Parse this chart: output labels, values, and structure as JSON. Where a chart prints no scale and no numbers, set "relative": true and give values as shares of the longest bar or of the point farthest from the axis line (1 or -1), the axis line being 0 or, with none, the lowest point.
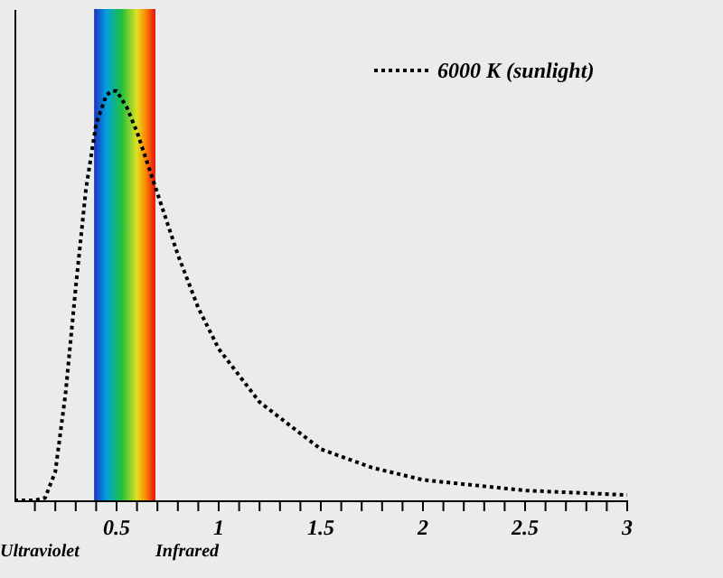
{
  "chart_data": {
    "type": "line",
    "relative": true,
    "x": [
      0.0,
      0.1,
      0.15,
      0.2,
      0.25,
      0.3,
      0.35,
      0.4,
      0.45,
      0.48,
      0.5,
      0.55,
      0.6,
      0.7,
      0.8,
      0.9,
      1.0,
      1.2,
      1.5,
      1.75,
      2.0,
      2.5,
      3.0
    ],
    "series": [
      {
        "name": "6000 K (sunlight)",
        "color": "#000000",
        "values": [
          0,
          0,
          0.006,
          0.07,
          0.26,
          0.52,
          0.76,
          0.92,
          0.99,
          1.0,
          1.0,
          0.96,
          0.9,
          0.75,
          0.6,
          0.47,
          0.37,
          0.24,
          0.125,
          0.08,
          0.05,
          0.024,
          0.013
        ]
      }
    ],
    "xlim": [
      0,
      3
    ],
    "xticks": [
      {
        "value": 0.1,
        "label": null
      },
      {
        "value": 0.2,
        "label": null
      },
      {
        "value": 0.3,
        "label": null
      },
      {
        "value": 0.4,
        "label": null
      },
      0.5,
      {
        "value": 0.6,
        "label": null
      },
      {
        "value": 0.7,
        "label": null
      },
      {
        "value": 0.8,
        "label": null
      },
      {
        "value": 0.9,
        "label": null
      },
      1,
      {
        "value": 1.1,
        "label": null
      },
      {
        "value": 1.2,
        "label": null
      },
      {
        "value": 1.3,
        "label": null
      },
      {
        "value": 1.4,
        "label": null
      },
      1.5,
      {
        "value": 1.6,
        "label": null
      },
      {
        "value": 1.7,
        "label": null
      },
      {
        "value": 1.8,
        "label": null
      },
      {
        "value": 1.9,
        "label": null
      },
      2,
      {
        "value": 2.1,
        "label": null
      },
      {
        "value": 2.2,
        "label": null
      },
      {
        "value": 2.3,
        "label": null
      },
      {
        "value": 2.4,
        "label": null
      },
      2.5,
      {
        "value": 2.6,
        "label": null
      },
      {
        "value": 2.7,
        "label": null
      },
      {
        "value": 2.8,
        "label": null
      },
      {
        "value": 2.9,
        "label": null
      },
      3
    ],
    "bands": [
      {
        "axis": "x",
        "from": 0.39,
        "to": 0.69
      }
    ],
    "annotations": [
      "Ultraviolet",
      "Infrared"
    ],
    "legend": "top right",
    "line_style": "dotted",
    "marker": "none",
    "grid": false
  }
}
